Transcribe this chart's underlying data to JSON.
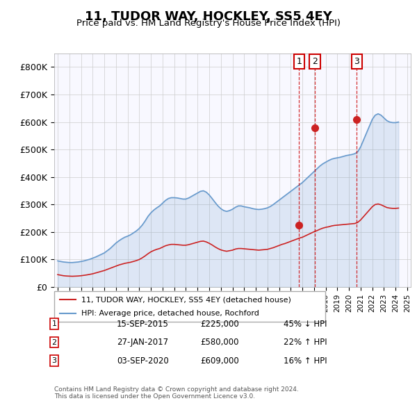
{
  "title": "11, TUDOR WAY, HOCKLEY, SS5 4EY",
  "subtitle": "Price paid vs. HM Land Registry's House Price Index (HPI)",
  "ylabel": "",
  "ylim": [
    0,
    850000
  ],
  "yticks": [
    0,
    100000,
    200000,
    300000,
    400000,
    500000,
    600000,
    700000,
    800000
  ],
  "ytick_labels": [
    "£0",
    "£100K",
    "£200K",
    "£300K",
    "£400K",
    "£500K",
    "£600K",
    "£700K",
    "£800K"
  ],
  "hpi_color": "#6699cc",
  "price_color": "#cc2222",
  "sale_color": "#cc2222",
  "vline_color": "#cc0000",
  "background_color": "#f0f4ff",
  "plot_bg": "#ffffff",
  "legend_label_red": "11, TUDOR WAY, HOCKLEY, SS5 4EY (detached house)",
  "legend_label_blue": "HPI: Average price, detached house, Rochford",
  "footer": "Contains HM Land Registry data © Crown copyright and database right 2024.\nThis data is licensed under the Open Government Licence v3.0.",
  "sales": [
    {
      "num": 1,
      "date": "15-SEP-2015",
      "price": 225000,
      "pct": "45%",
      "dir": "↓",
      "x": 2015.71
    },
    {
      "num": 2,
      "date": "27-JAN-2017",
      "price": 580000,
      "pct": "22%",
      "dir": "↑",
      "x": 2017.07
    },
    {
      "num": 3,
      "date": "03-SEP-2020",
      "price": 609000,
      "pct": "16%",
      "dir": "↑",
      "x": 2020.67
    }
  ],
  "hpi_x": [
    1995.0,
    1995.25,
    1995.5,
    1995.75,
    1996.0,
    1996.25,
    1996.5,
    1996.75,
    1997.0,
    1997.25,
    1997.5,
    1997.75,
    1998.0,
    1998.25,
    1998.5,
    1998.75,
    1999.0,
    1999.25,
    1999.5,
    1999.75,
    2000.0,
    2000.25,
    2000.5,
    2000.75,
    2001.0,
    2001.25,
    2001.5,
    2001.75,
    2002.0,
    2002.25,
    2002.5,
    2002.75,
    2003.0,
    2003.25,
    2003.5,
    2003.75,
    2004.0,
    2004.25,
    2004.5,
    2004.75,
    2005.0,
    2005.25,
    2005.5,
    2005.75,
    2006.0,
    2006.25,
    2006.5,
    2006.75,
    2007.0,
    2007.25,
    2007.5,
    2007.75,
    2008.0,
    2008.25,
    2008.5,
    2008.75,
    2009.0,
    2009.25,
    2009.5,
    2009.75,
    2010.0,
    2010.25,
    2010.5,
    2010.75,
    2011.0,
    2011.25,
    2011.5,
    2011.75,
    2012.0,
    2012.25,
    2012.5,
    2012.75,
    2013.0,
    2013.25,
    2013.5,
    2013.75,
    2014.0,
    2014.25,
    2014.5,
    2014.75,
    2015.0,
    2015.25,
    2015.5,
    2015.75,
    2016.0,
    2016.25,
    2016.5,
    2016.75,
    2017.0,
    2017.25,
    2017.5,
    2017.75,
    2018.0,
    2018.25,
    2018.5,
    2018.75,
    2019.0,
    2019.25,
    2019.5,
    2019.75,
    2020.0,
    2020.25,
    2020.5,
    2020.75,
    2021.0,
    2021.25,
    2021.5,
    2021.75,
    2022.0,
    2022.25,
    2022.5,
    2022.75,
    2023.0,
    2023.25,
    2023.5,
    2023.75,
    2024.0,
    2024.25
  ],
  "hpi_y": [
    95000,
    93000,
    91000,
    90000,
    89000,
    89000,
    90000,
    91000,
    93000,
    95000,
    98000,
    101000,
    105000,
    109000,
    114000,
    119000,
    124000,
    132000,
    140000,
    150000,
    160000,
    168000,
    175000,
    181000,
    185000,
    190000,
    197000,
    204000,
    213000,
    225000,
    240000,
    257000,
    270000,
    280000,
    288000,
    295000,
    305000,
    315000,
    322000,
    325000,
    325000,
    324000,
    322000,
    320000,
    320000,
    324000,
    330000,
    336000,
    342000,
    348000,
    350000,
    345000,
    335000,
    322000,
    308000,
    295000,
    285000,
    278000,
    275000,
    278000,
    283000,
    290000,
    295000,
    295000,
    292000,
    290000,
    288000,
    285000,
    283000,
    282000,
    283000,
    285000,
    288000,
    293000,
    300000,
    308000,
    316000,
    324000,
    332000,
    340000,
    348000,
    356000,
    364000,
    372000,
    380000,
    390000,
    400000,
    410000,
    420000,
    430000,
    440000,
    448000,
    454000,
    460000,
    465000,
    468000,
    470000,
    472000,
    475000,
    478000,
    480000,
    482000,
    485000,
    492000,
    510000,
    535000,
    560000,
    585000,
    610000,
    625000,
    630000,
    625000,
    615000,
    605000,
    600000,
    598000,
    598000,
    600000
  ],
  "price_x": [
    1995.0,
    1995.25,
    1995.5,
    1995.75,
    1996.0,
    1996.25,
    1996.5,
    1996.75,
    1997.0,
    1997.25,
    1997.5,
    1997.75,
    1998.0,
    1998.25,
    1998.5,
    1998.75,
    1999.0,
    1999.25,
    1999.5,
    1999.75,
    2000.0,
    2000.25,
    2000.5,
    2000.75,
    2001.0,
    2001.25,
    2001.5,
    2001.75,
    2002.0,
    2002.25,
    2002.5,
    2002.75,
    2003.0,
    2003.25,
    2003.5,
    2003.75,
    2004.0,
    2004.25,
    2004.5,
    2004.75,
    2005.0,
    2005.25,
    2005.5,
    2005.75,
    2006.0,
    2006.25,
    2006.5,
    2006.75,
    2007.0,
    2007.25,
    2007.5,
    2007.75,
    2008.0,
    2008.25,
    2008.5,
    2008.75,
    2009.0,
    2009.25,
    2009.5,
    2009.75,
    2010.0,
    2010.25,
    2010.5,
    2010.75,
    2011.0,
    2011.25,
    2011.5,
    2011.75,
    2012.0,
    2012.25,
    2012.5,
    2012.75,
    2013.0,
    2013.25,
    2013.5,
    2013.75,
    2014.0,
    2014.25,
    2014.5,
    2014.75,
    2015.0,
    2015.25,
    2015.5,
    2015.75,
    2016.0,
    2016.25,
    2016.5,
    2016.75,
    2017.0,
    2017.25,
    2017.5,
    2017.75,
    2018.0,
    2018.25,
    2018.5,
    2018.75,
    2019.0,
    2019.25,
    2019.5,
    2019.75,
    2020.0,
    2020.25,
    2020.5,
    2020.75,
    2021.0,
    2021.25,
    2021.5,
    2021.75,
    2022.0,
    2022.25,
    2022.5,
    2022.75,
    2023.0,
    2023.25,
    2023.5,
    2023.75,
    2024.0,
    2024.25
  ],
  "price_y": [
    45000,
    43000,
    41000,
    40000,
    39500,
    39000,
    39500,
    40000,
    41000,
    42500,
    44000,
    46000,
    48000,
    51000,
    54000,
    57000,
    60000,
    64000,
    68000,
    72000,
    76000,
    80000,
    83000,
    86000,
    88000,
    90000,
    93000,
    96000,
    100000,
    106000,
    113000,
    121000,
    128000,
    133000,
    137000,
    140000,
    145000,
    150000,
    153000,
    155000,
    155000,
    154000,
    153000,
    152000,
    152000,
    154000,
    157000,
    160000,
    163000,
    166000,
    167000,
    164000,
    159000,
    153000,
    146000,
    140000,
    135000,
    132000,
    130000,
    132000,
    134000,
    138000,
    140000,
    140000,
    139000,
    138000,
    137000,
    136000,
    135000,
    134000,
    135000,
    136000,
    137000,
    140000,
    143000,
    147000,
    151000,
    155000,
    158000,
    162000,
    166000,
    170000,
    174000,
    178000,
    181000,
    186000,
    191000,
    196000,
    201000,
    205000,
    210000,
    214000,
    217000,
    219000,
    222000,
    224000,
    225000,
    226000,
    227000,
    228000,
    229000,
    230000,
    231000,
    235000,
    244000,
    256000,
    268000,
    280000,
    292000,
    300000,
    302000,
    299000,
    294000,
    289000,
    287000,
    286000,
    286000,
    287000
  ]
}
